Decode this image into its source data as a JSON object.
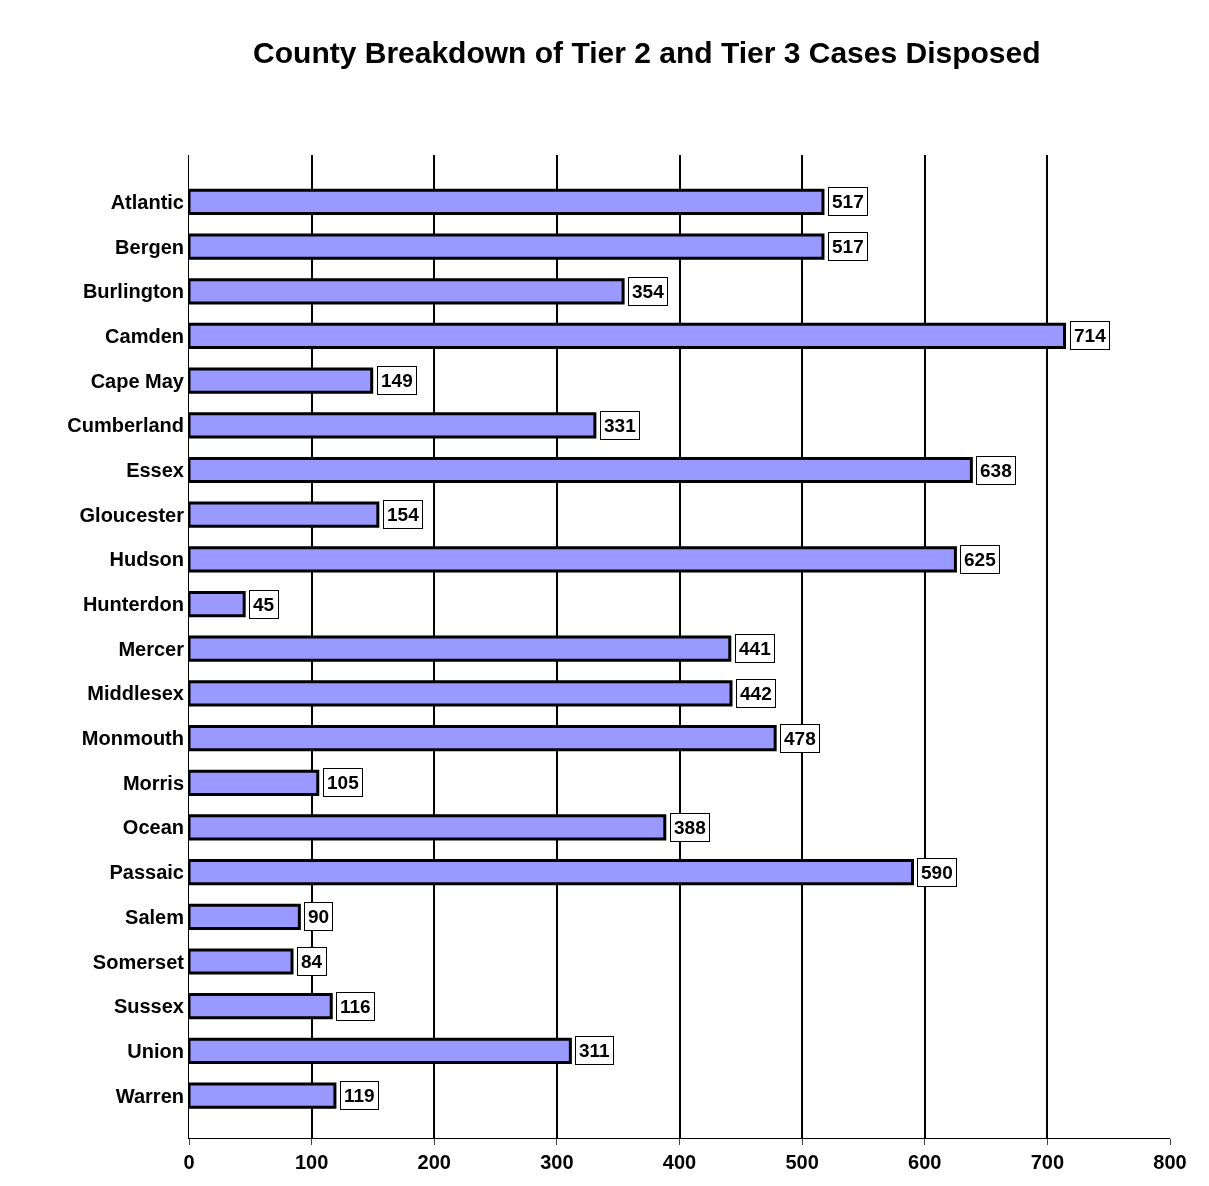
{
  "chart_data": {
    "type": "bar",
    "orientation": "horizontal",
    "title": "County Breakdown of Tier 2 and Tier 3 Cases Disposed",
    "categories": [
      "Atlantic",
      "Bergen",
      "Burlington",
      "Camden",
      "Cape May",
      "Cumberland",
      "Essex",
      "Gloucester",
      "Hudson",
      "Hunterdon",
      "Mercer",
      "Middlesex",
      "Monmouth",
      "Morris",
      "Ocean",
      "Passaic",
      "Salem",
      "Somerset",
      "Sussex",
      "Union",
      "Warren"
    ],
    "values": [
      517,
      517,
      354,
      714,
      149,
      331,
      638,
      154,
      625,
      45,
      441,
      442,
      478,
      105,
      388,
      590,
      90,
      84,
      116,
      311,
      119
    ],
    "color": "#9999ff",
    "xlim": [
      0,
      800
    ],
    "xticks": [
      0,
      100,
      200,
      300,
      400,
      500,
      600,
      700,
      800
    ],
    "grid": "x",
    "data_labels": true
  }
}
